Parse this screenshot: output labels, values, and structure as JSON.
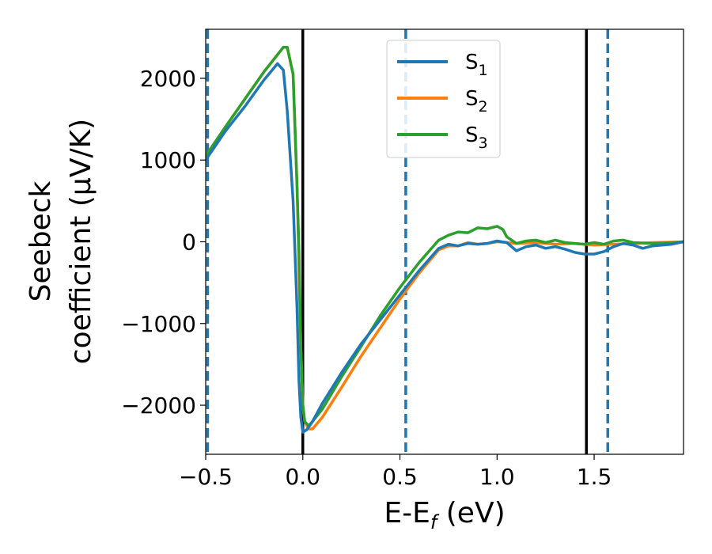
{
  "chart_data": {
    "type": "line",
    "xlabel": "E-E",
    "xlabel_sub": "f",
    "xlabel_unit": " (eV)",
    "ylabel_line1": "Seebeck",
    "ylabel_line2": "coefficient  (μV/K)",
    "xlim": [
      -0.5,
      1.96
    ],
    "ylim": [
      -2600,
      2600
    ],
    "x_ticks": [
      -0.5,
      0.0,
      0.5,
      1.0,
      1.5
    ],
    "x_tick_labels": [
      "−0.5",
      "0.0",
      "0.5",
      "1.0",
      "1.5"
    ],
    "y_ticks": [
      -2000,
      -1000,
      0,
      1000,
      2000
    ],
    "y_tick_labels": [
      "−2000",
      "−1000",
      "0",
      "1000",
      "2000"
    ],
    "grid": false,
    "legend_position": "top-center",
    "vertical_lines_solid": [
      0.0,
      1.46
    ],
    "vertical_lines_dashed": [
      -0.49,
      0.53,
      1.57
    ],
    "colors": {
      "solid_line": "#000000",
      "dashed_line": "#1f77b4"
    },
    "series": [
      {
        "name": "S",
        "name_sub": "1",
        "color": "#1f77b4",
        "x": [
          -0.5,
          -0.4,
          -0.3,
          -0.2,
          -0.13,
          -0.1,
          -0.08,
          -0.05,
          -0.03,
          -0.02,
          -0.01,
          0.0,
          0.02,
          0.05,
          0.1,
          0.2,
          0.3,
          0.4,
          0.5,
          0.6,
          0.7,
          0.75,
          0.8,
          0.85,
          0.9,
          0.95,
          1.0,
          1.05,
          1.1,
          1.15,
          1.2,
          1.25,
          1.3,
          1.35,
          1.4,
          1.45,
          1.5,
          1.55,
          1.6,
          1.65,
          1.7,
          1.75,
          1.8,
          1.9,
          1.96
        ],
        "y": [
          1000,
          1350,
          1650,
          1980,
          2180,
          2100,
          1600,
          500,
          -800,
          -1700,
          -2150,
          -2330,
          -2300,
          -2200,
          -1980,
          -1600,
          -1250,
          -950,
          -650,
          -350,
          -80,
          -30,
          -50,
          -20,
          -30,
          -20,
          10,
          -10,
          -110,
          -60,
          -40,
          -80,
          -60,
          -90,
          -130,
          -150,
          -150,
          -120,
          -60,
          -20,
          -40,
          -80,
          -50,
          -30,
          0
        ]
      },
      {
        "name": "S",
        "name_sub": "2",
        "color": "#ff7f0e",
        "x": [
          -0.5,
          -0.4,
          -0.3,
          -0.2,
          -0.1,
          -0.08,
          -0.05,
          -0.03,
          -0.01,
          0.0,
          0.01,
          0.03,
          0.05,
          0.1,
          0.2,
          0.3,
          0.4,
          0.5,
          0.6,
          0.7,
          0.75,
          0.8,
          0.85,
          0.9,
          0.95,
          1.0,
          1.05,
          1.1,
          1.2,
          1.3,
          1.4,
          1.5,
          1.6,
          1.7,
          1.8,
          1.9,
          1.96
        ],
        "y": [
          1050,
          1400,
          1740,
          2080,
          2380,
          2380,
          2050,
          700,
          -1300,
          -2000,
          -2200,
          -2290,
          -2290,
          -2150,
          -1780,
          -1400,
          -1050,
          -700,
          -380,
          -100,
          -50,
          -50,
          -10,
          -30,
          -20,
          0,
          -10,
          -20,
          -10,
          -30,
          -20,
          -40,
          -30,
          -20,
          -10,
          -5,
          0
        ]
      },
      {
        "name": "S",
        "name_sub": "3",
        "color": "#2ca02c",
        "x": [
          -0.5,
          -0.4,
          -0.3,
          -0.2,
          -0.1,
          -0.08,
          -0.05,
          -0.03,
          -0.02,
          -0.01,
          0.0,
          0.01,
          0.03,
          0.05,
          0.1,
          0.2,
          0.3,
          0.4,
          0.5,
          0.6,
          0.7,
          0.75,
          0.8,
          0.85,
          0.9,
          0.95,
          1.0,
          1.03,
          1.05,
          1.1,
          1.15,
          1.2,
          1.25,
          1.3,
          1.35,
          1.4,
          1.45,
          1.5,
          1.55,
          1.6,
          1.65,
          1.7,
          1.8,
          1.9,
          1.96
        ],
        "y": [
          1050,
          1400,
          1740,
          2080,
          2380,
          2380,
          2050,
          700,
          -100,
          -1300,
          -2000,
          -2200,
          -2250,
          -2200,
          -2050,
          -1650,
          -1280,
          -900,
          -560,
          -250,
          20,
          80,
          120,
          110,
          170,
          160,
          190,
          150,
          60,
          -20,
          10,
          20,
          -10,
          20,
          -10,
          -20,
          -30,
          -10,
          -30,
          10,
          20,
          -10,
          -20,
          -10,
          0
        ]
      }
    ]
  }
}
